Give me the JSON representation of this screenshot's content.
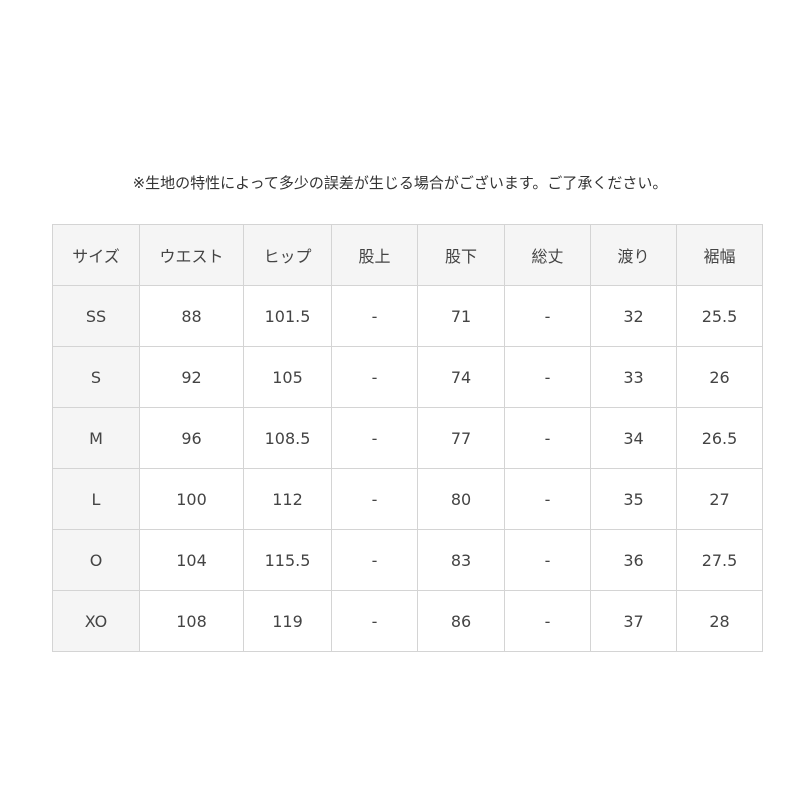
{
  "note": "※生地の特性によって多少の誤差が生じる場合がございます。ご了承ください。",
  "table": {
    "header": [
      "サイズ",
      "ウエスト",
      "ヒップ",
      "股上",
      "股下",
      "総丈",
      "渡り",
      "裾幅"
    ],
    "rows": [
      [
        "SS",
        "88",
        "101.5",
        "-",
        "71",
        "-",
        "32",
        "25.5"
      ],
      [
        "S",
        "92",
        "105",
        "-",
        "74",
        "-",
        "33",
        "26"
      ],
      [
        "M",
        "96",
        "108.5",
        "-",
        "77",
        "-",
        "34",
        "26.5"
      ],
      [
        "L",
        "100",
        "112",
        "-",
        "80",
        "-",
        "35",
        "27"
      ],
      [
        "O",
        "104",
        "115.5",
        "-",
        "83",
        "-",
        "36",
        "27.5"
      ],
      [
        "XO",
        "108",
        "119",
        "-",
        "86",
        "-",
        "37",
        "28"
      ]
    ]
  }
}
